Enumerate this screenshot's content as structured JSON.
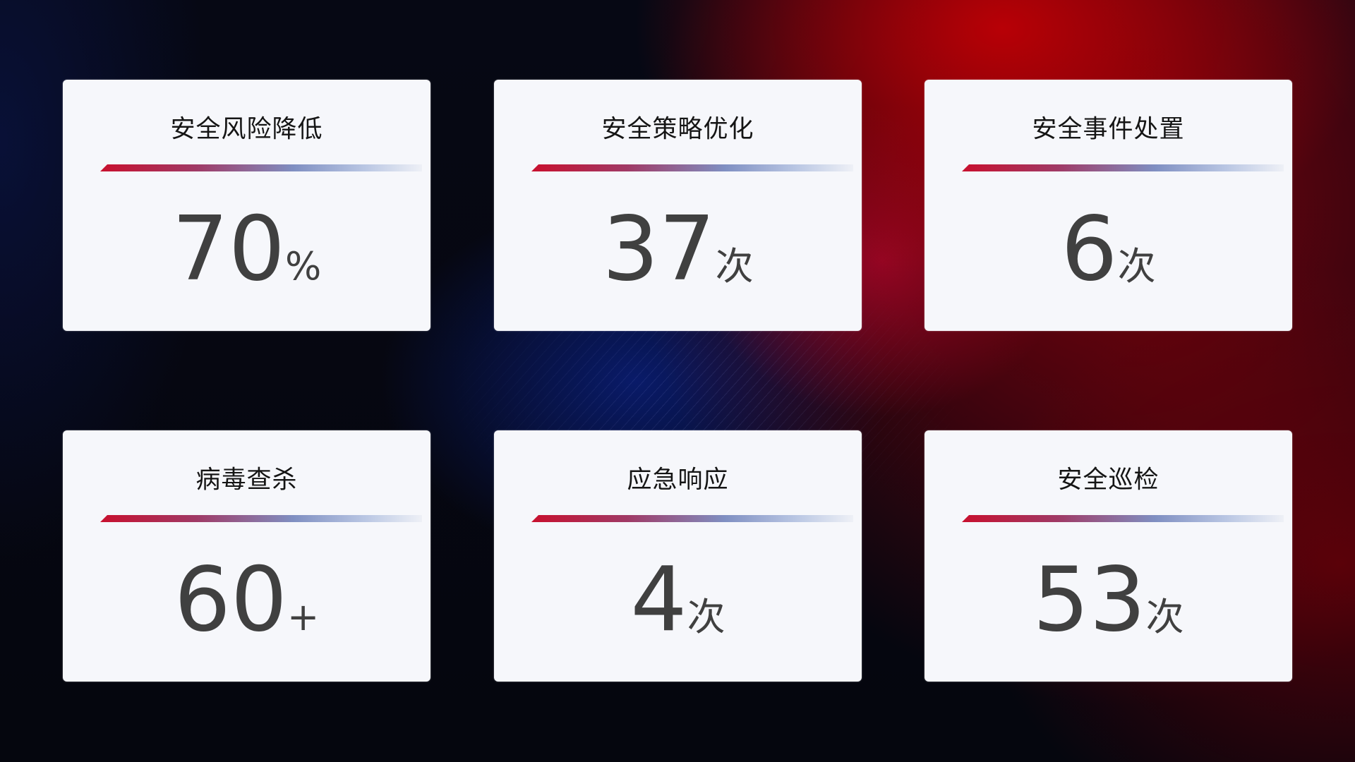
{
  "cards": [
    {
      "title": "安全风险降低",
      "value": "70",
      "unit": "%"
    },
    {
      "title": "安全策略优化",
      "value": "37",
      "unit": "次"
    },
    {
      "title": "安全事件处置",
      "value": "6",
      "unit": "次"
    },
    {
      "title": "病毒查杀",
      "value": "60",
      "unit": "+"
    },
    {
      "title": "应急响应",
      "value": "4",
      "unit": "次"
    },
    {
      "title": "安全巡检",
      "value": "53",
      "unit": "次"
    }
  ],
  "colors": {
    "accent_red": "#c8102e",
    "accent_blue": "#7f8fc2",
    "card_bg": "#f6f7fb",
    "value_text": "#404040"
  }
}
